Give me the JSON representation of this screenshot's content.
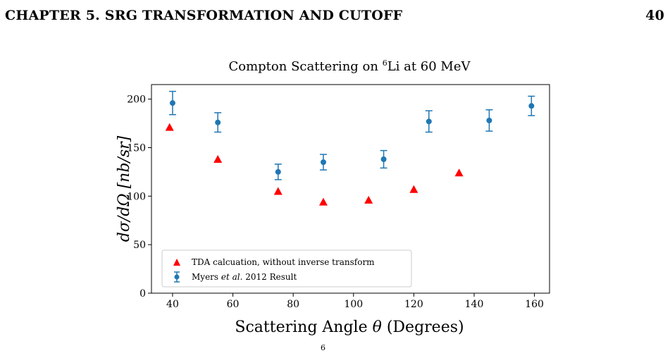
{
  "header": {
    "chapter": "CHAPTER 5.  SRG TRANSFORMATION AND CUTOFF",
    "page_number": "40"
  },
  "chart_data": {
    "type": "scatter",
    "title_text": "Compton Scattering on ",
    "title_sup": "6",
    "title_rest": "Li at 60 MeV",
    "xlabel_text": "Scattering Angle ",
    "xlabel_symbol": "θ",
    "xlabel_rest": " (Degrees)",
    "ylabel": "dσ/dΩ [nb/sr]",
    "xlim": [
      33,
      165
    ],
    "ylim": [
      0,
      215
    ],
    "xticks": [
      40,
      60,
      80,
      100,
      120,
      140,
      160
    ],
    "yticks": [
      0,
      50,
      100,
      150,
      200
    ],
    "legend_position": "lower-left",
    "series": [
      {
        "name": "TDA calcuation, without inverse transform",
        "marker": "triangle",
        "color": "#ff0000",
        "points": [
          {
            "x": 39,
            "y": 171
          },
          {
            "x": 55,
            "y": 138
          },
          {
            "x": 75,
            "y": 105
          },
          {
            "x": 90,
            "y": 94
          },
          {
            "x": 105,
            "y": 96
          },
          {
            "x": 120,
            "y": 107
          },
          {
            "x": 135,
            "y": 124
          }
        ]
      },
      {
        "name_prefix": "Myers ",
        "name_italic": "et al.",
        "name_suffix": " 2012 Result",
        "marker": "circle",
        "color": "#1f77b4",
        "points": [
          {
            "x": 40,
            "y": 196,
            "err": 12
          },
          {
            "x": 55,
            "y": 176,
            "err": 10
          },
          {
            "x": 75,
            "y": 125,
            "err": 8
          },
          {
            "x": 90,
            "y": 135,
            "err": 8
          },
          {
            "x": 110,
            "y": 138,
            "err": 9
          },
          {
            "x": 125,
            "y": 177,
            "err": 11
          },
          {
            "x": 145,
            "y": 178,
            "err": 11
          },
          {
            "x": 159,
            "y": 193,
            "err": 10
          }
        ]
      }
    ]
  },
  "caption": {
    "superscript_fragment": "6"
  }
}
